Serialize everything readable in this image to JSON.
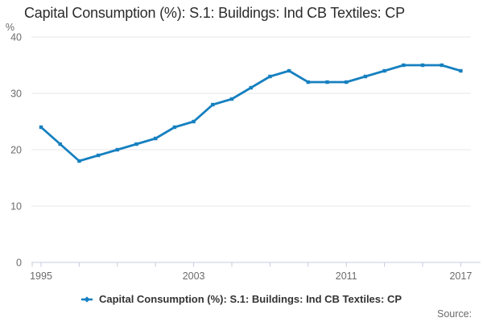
{
  "header": {
    "title": "Capital Consumption (%): S.1: Buildings: Ind CB Textiles: CP"
  },
  "axes": {
    "unit_label": "%"
  },
  "legend": {
    "label": "Capital Consumption (%): S.1: Buildings: Ind CB Textiles: CP"
  },
  "footer": {
    "source_label": "Source:"
  },
  "colors": {
    "line": "#1680c0",
    "grid": "#e7e7e7",
    "axis": "#c4cedc",
    "tick_label": "#6b6b6b",
    "title": "#2b2b2b",
    "legend_text": "#333333",
    "source_text": "#6b6b6b"
  },
  "chart_data": {
    "type": "line",
    "title": "Capital Consumption (%): S.1: Buildings: Ind CB Textiles: CP",
    "xlabel": "",
    "ylabel": "%",
    "ylim": [
      0,
      40
    ],
    "yticks": [
      0,
      10,
      20,
      30,
      40
    ],
    "xtick_step_years": 2,
    "xtick_labels": [
      "1995",
      "2003",
      "2011",
      "2017"
    ],
    "grid": true,
    "legend_position": "bottom",
    "x": [
      1995,
      1996,
      1997,
      1998,
      1999,
      2000,
      2001,
      2002,
      2003,
      2004,
      2005,
      2006,
      2007,
      2008,
      2009,
      2010,
      2011,
      2012,
      2013,
      2014,
      2015,
      2016,
      2017
    ],
    "series": [
      {
        "name": "Capital Consumption (%): S.1: Buildings: Ind CB Textiles: CP",
        "values": [
          24,
          21,
          18,
          19,
          20,
          21,
          22,
          24,
          25,
          28,
          29,
          31,
          33,
          34,
          32,
          32,
          32,
          33,
          34,
          35,
          35,
          35,
          34
        ]
      }
    ]
  }
}
